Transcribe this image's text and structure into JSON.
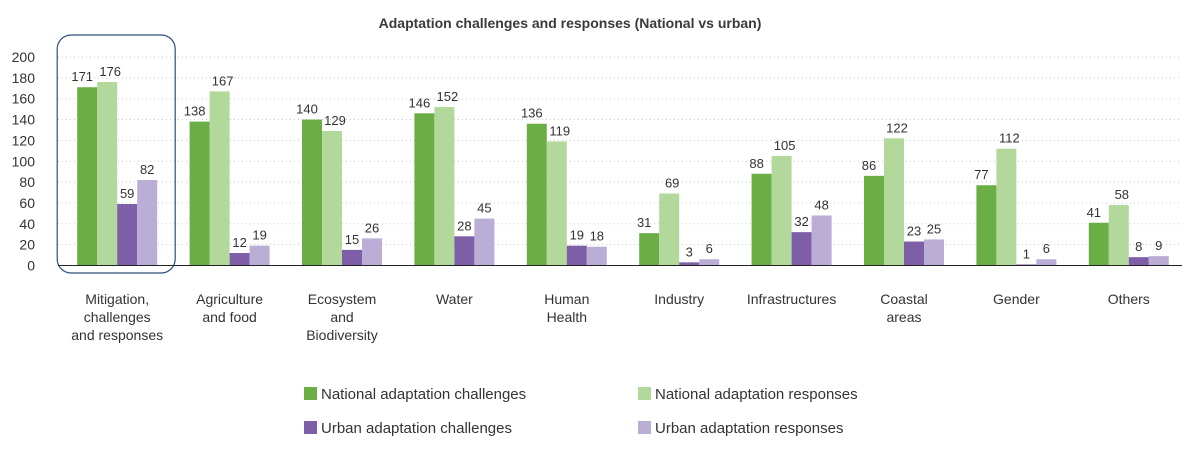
{
  "chart_data": {
    "type": "bar",
    "title": "Adaptation challenges and responses (National vs urban)",
    "categories": [
      [
        "Mitigation,",
        "challenges",
        "and responses"
      ],
      [
        "Agriculture",
        "and food"
      ],
      [
        "Ecosystem",
        "and",
        "Biodiversity"
      ],
      [
        "Water"
      ],
      [
        "Human",
        "Health"
      ],
      [
        "Industry"
      ],
      [
        "Infrastructures"
      ],
      [
        "Coastal",
        "areas"
      ],
      [
        "Gender"
      ],
      [
        "Others"
      ]
    ],
    "series": [
      {
        "name": "National adaptation challenges",
        "color": "#6aae45",
        "values": [
          171,
          138,
          140,
          146,
          136,
          31,
          88,
          86,
          77,
          41
        ]
      },
      {
        "name": "National adaptation responses",
        "color": "#b3d89c",
        "values": [
          176,
          167,
          129,
          152,
          119,
          69,
          105,
          122,
          112,
          58
        ]
      },
      {
        "name": "Urban adaptation challenges",
        "color": "#7f5ea8",
        "values": [
          59,
          12,
          15,
          28,
          19,
          3,
          32,
          23,
          1,
          8
        ]
      },
      {
        "name": "Urban adaptation responses",
        "color": "#bbaed6",
        "values": [
          82,
          19,
          26,
          45,
          18,
          6,
          48,
          25,
          6,
          9
        ]
      }
    ],
    "yticks": [
      0,
      20,
      40,
      60,
      80,
      100,
      120,
      140,
      160,
      180,
      200
    ],
    "ylim": [
      0,
      200
    ],
    "grid": true,
    "highlight_category": 0,
    "highlight_color": "#2d4f7c",
    "legend_position": "bottom-center"
  }
}
